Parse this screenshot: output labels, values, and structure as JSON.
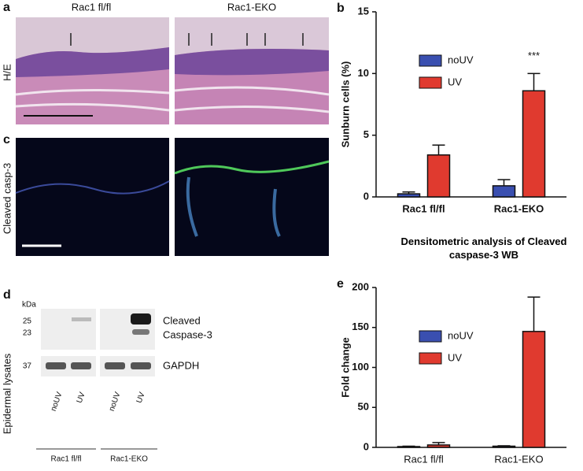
{
  "panel_a": {
    "label": "a",
    "columns": [
      "Rac1 fl/fl",
      "Rac1-EKO"
    ],
    "row_label": "H/E"
  },
  "panel_c": {
    "label": "c",
    "row_label": "Cleaved casp-3"
  },
  "panel_d": {
    "label": "d",
    "unit": "kDa",
    "markers": [
      25,
      23,
      37
    ],
    "bands": [
      "Cleaved",
      "Caspase-3",
      "GAPDH"
    ],
    "row_label": "Epidermal lysates",
    "lanes": [
      "noUV",
      "UV",
      "noUV",
      "UV"
    ],
    "groups": [
      "Rac1 fl/fl",
      "Rac1-EKO"
    ]
  },
  "chart_data": [
    {
      "type": "bar",
      "panel": "b",
      "ylabel": "Sunburn cells (%)",
      "categories": [
        "Rac1 fl/fl",
        "Rac1-EKO"
      ],
      "series": [
        {
          "name": "noUV",
          "color": "#3a4fb0",
          "values": [
            0.25,
            0.9
          ],
          "errors": [
            0.15,
            0.5
          ]
        },
        {
          "name": "UV",
          "color": "#e03a2f",
          "values": [
            3.4,
            8.6
          ],
          "errors": [
            0.8,
            1.4
          ]
        }
      ],
      "ylim": [
        0,
        15
      ],
      "yticks": [
        0,
        5,
        10,
        15
      ],
      "legend": "upper left",
      "annotation": "***"
    },
    {
      "type": "bar",
      "panel": "e",
      "title": "Densitometric analysis of Cleaved caspase-3 WB",
      "ylabel": "Fold change",
      "categories": [
        "Rac1 fl/fl",
        "Rac1-EKO"
      ],
      "series": [
        {
          "name": "noUV",
          "color": "#3a4fb0",
          "values": [
            1,
            1.5
          ],
          "errors": [
            0.5,
            0.5
          ]
        },
        {
          "name": "UV",
          "color": "#e03a2f",
          "values": [
            3,
            145
          ],
          "errors": [
            3,
            43
          ]
        }
      ],
      "ylim": [
        0,
        200
      ],
      "yticks": [
        0,
        50,
        100,
        150,
        200
      ],
      "legend": "upper left"
    }
  ]
}
